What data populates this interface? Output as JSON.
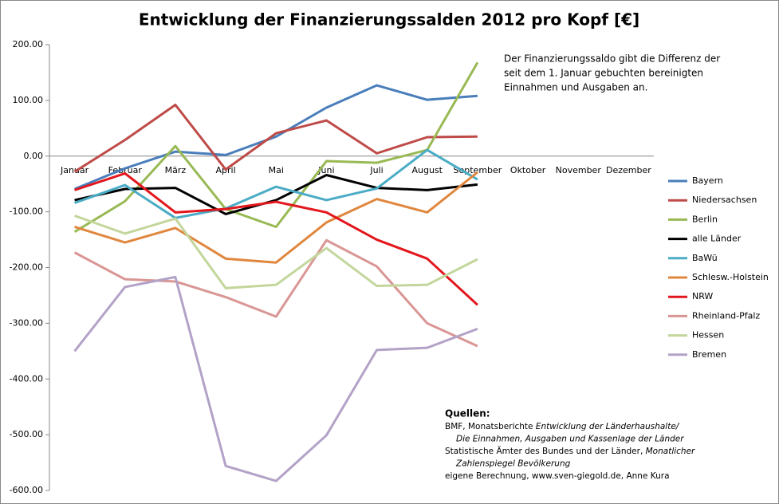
{
  "chart_data": {
    "type": "line",
    "title": "Entwicklung der Finanzierungssalden 2012 pro Kopf [€]",
    "categories": [
      "Januar",
      "Februar",
      "März",
      "April",
      "Mai",
      "Juni",
      "Juli",
      "August",
      "September",
      "Oktober",
      "November",
      "Dezember"
    ],
    "ylim": [
      -600,
      200
    ],
    "yticks": [
      {
        "value": -600,
        "label": "-600.00"
      },
      {
        "value": -500,
        "label": "-500.00"
      },
      {
        "value": -400,
        "label": "-400.00"
      },
      {
        "value": -300,
        "label": "-300.00"
      },
      {
        "value": -200,
        "label": "-200.00"
      },
      {
        "value": -100,
        "label": "-100.00"
      },
      {
        "value": 0,
        "label": "0.00"
      },
      {
        "value": 100,
        "label": "100.00"
      },
      {
        "value": 200,
        "label": "200.00"
      }
    ],
    "grid": false,
    "legend": "right",
    "series": [
      {
        "name": "Bayern",
        "color": "#4a7ebb",
        "values": [
          -59,
          -22,
          8,
          2,
          35,
          87,
          127,
          101,
          108,
          null,
          null,
          null
        ]
      },
      {
        "name": "Niedersachsen",
        "color": "#be4b48",
        "values": [
          -28,
          29,
          92,
          -24,
          41,
          64,
          5,
          34,
          35,
          null,
          null,
          null
        ]
      },
      {
        "name": "Berlin",
        "color": "#98b954",
        "values": [
          -136,
          -81,
          18,
          -95,
          -127,
          -9,
          -12,
          11,
          168,
          null,
          null,
          null
        ]
      },
      {
        "name": "alle Länder",
        "color": "#000000",
        "values": [
          -79,
          -59,
          -57,
          -104,
          -79,
          -34,
          -57,
          -61,
          -51,
          null,
          null,
          null
        ]
      },
      {
        "name": "BaWü",
        "color": "#4bacc6",
        "values": [
          -84,
          -52,
          -111,
          -94,
          -55,
          -79,
          -58,
          11,
          -42,
          null,
          null,
          null
        ]
      },
      {
        "name": "Schlesw.-Holstein",
        "color": "#e0873e",
        "values": [
          -127,
          -155,
          -129,
          -184,
          -191,
          -119,
          -77,
          -101,
          -29,
          null,
          null,
          null
        ]
      },
      {
        "name": "NRW",
        "color": "#e3161c",
        "values": [
          -61,
          -31,
          -101,
          -95,
          -82,
          -101,
          -150,
          -184,
          -267,
          null,
          null,
          null
        ]
      },
      {
        "name": "Rheinland-Pfalz",
        "color": "#d99694",
        "values": [
          -173,
          -221,
          -225,
          -253,
          -288,
          -151,
          -198,
          -300,
          -341,
          null,
          null,
          null
        ]
      },
      {
        "name": "Hessen",
        "color": "#c3d69b",
        "values": [
          -107,
          -139,
          -112,
          -237,
          -231,
          -165,
          -233,
          -231,
          -185,
          null,
          null,
          null
        ]
      },
      {
        "name": "Bremen",
        "color": "#b3a2c7",
        "values": [
          -350,
          -235,
          -217,
          -556,
          -583,
          -501,
          -348,
          -344,
          -310,
          null,
          null,
          null
        ]
      }
    ],
    "annotation": [
      "Der Finanzierungssaldo gibt die Differenz der",
      "seit dem 1. Januar gebuchten bereinigten",
      "Einnahmen und Ausgaben an."
    ],
    "sources": {
      "title": "Quellen:",
      "lines": [
        [
          {
            "text": "BMF,  Monatsberichte "
          },
          {
            "text": "Entwicklung der Länderhaushalte/",
            "italic": true
          }
        ],
        [
          {
            "text": "Die Einnahmen, Ausgaben und Kassenlage der Länder",
            "italic": true,
            "indent": true
          }
        ],
        [
          {
            "text": "Statistische Ämter des Bundes und der Länder, "
          },
          {
            "text": "Monatlicher",
            "italic": true
          }
        ],
        [
          {
            "text": "Zahlenspiegel Bevölkerung",
            "italic": true,
            "indent": true
          }
        ],
        [
          {
            "text": "eigene Berechnung, www.sven-giegold.de, Anne Kura"
          }
        ]
      ]
    }
  }
}
